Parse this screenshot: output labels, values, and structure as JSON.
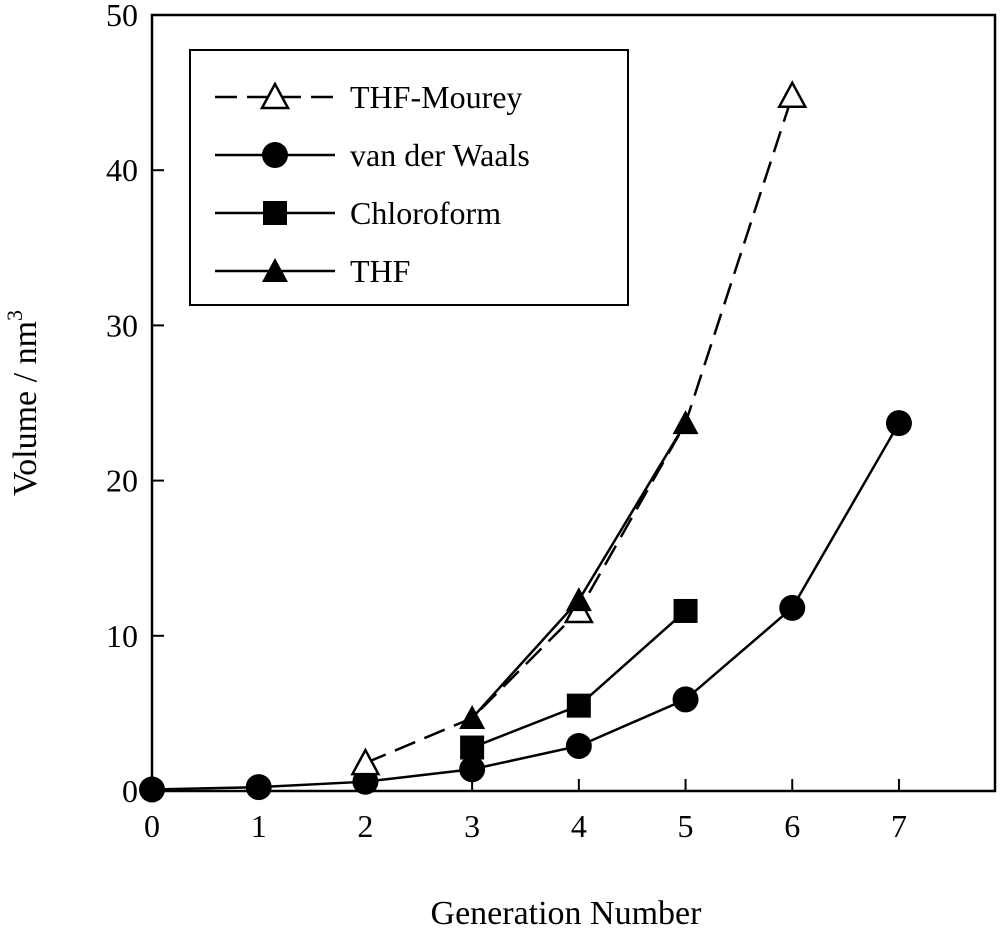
{
  "chart_data": {
    "type": "line",
    "title": "",
    "xlabel": "Generation Number",
    "ylabel": "Volume / nm",
    "ylabel_superscript": "3",
    "xlim": [
      0,
      7.9
    ],
    "ylim": [
      0,
      50
    ],
    "xticks": [
      "0",
      "1",
      "2",
      "3",
      "4",
      "5",
      "6",
      "7"
    ],
    "yticks": [
      "0",
      "10",
      "20",
      "30",
      "40",
      "50"
    ],
    "grid": false,
    "legend_position": "top-left",
    "series": [
      {
        "name": "THF-Mourey",
        "marker": "open-triangle",
        "line": "dashed",
        "x": [
          2,
          3,
          4,
          5,
          6
        ],
        "y": [
          1.8,
          4.7,
          11.6,
          23.7,
          44.8
        ]
      },
      {
        "name": "van der Waals",
        "marker": "filled-circle",
        "line": "solid",
        "x": [
          0,
          1,
          2,
          3,
          4,
          5,
          6,
          7
        ],
        "y": [
          0.1,
          0.25,
          0.6,
          1.4,
          2.9,
          5.9,
          11.8,
          23.7
        ]
      },
      {
        "name": "Chloroform",
        "marker": "filled-square",
        "line": "solid",
        "x": [
          3,
          4,
          5
        ],
        "y": [
          2.8,
          5.5,
          11.6
        ]
      },
      {
        "name": "THF",
        "marker": "filled-triangle",
        "line": "solid",
        "x": [
          3,
          4,
          5
        ],
        "y": [
          4.7,
          12.3,
          23.7
        ]
      }
    ]
  }
}
